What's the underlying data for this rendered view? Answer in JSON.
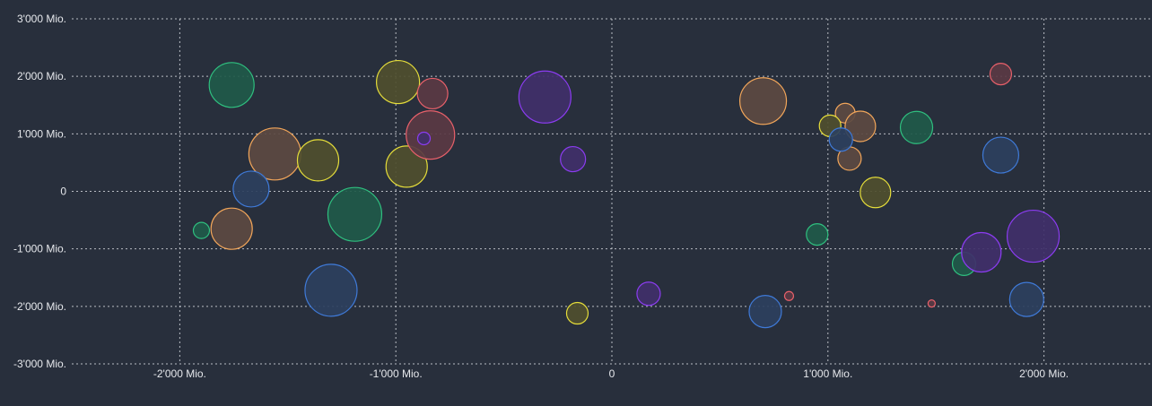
{
  "chart_data": {
    "type": "scatter",
    "subtype": "bubble",
    "title": "",
    "xlabel": "",
    "ylabel": "",
    "xlim": [
      -2500,
      2500
    ],
    "ylim": [
      -3000,
      3000
    ],
    "grid": true,
    "legend": "none",
    "x_ticks": [
      {
        "value": -2000,
        "label": "-2'000 Mio."
      },
      {
        "value": -1000,
        "label": "-1'000 Mio."
      },
      {
        "value": 0,
        "label": "0"
      },
      {
        "value": 1000,
        "label": "1'000 Mio."
      },
      {
        "value": 2000,
        "label": "2'000 Mio."
      }
    ],
    "y_ticks": [
      {
        "value": 3000,
        "label": "3'000 Mio."
      },
      {
        "value": 2000,
        "label": "2'000 Mio."
      },
      {
        "value": 1000,
        "label": "1'000 Mio."
      },
      {
        "value": 0,
        "label": "0"
      },
      {
        "value": -1000,
        "label": "-1'000 Mio."
      },
      {
        "value": -2000,
        "label": "-2'000 Mio."
      },
      {
        "value": -3000,
        "label": "-3'000 Mio."
      }
    ],
    "series": [
      {
        "color": "#2fbf7f",
        "fill": "#1f5a4a",
        "points": [
          {
            "x": -1760,
            "y": 1850,
            "size": 25
          },
          {
            "x": -1190,
            "y": -400,
            "size": 30
          },
          {
            "x": -1900,
            "y": -680,
            "size": 9
          },
          {
            "x": 950,
            "y": -750,
            "size": 12
          },
          {
            "x": 1410,
            "y": 1110,
            "size": 18
          },
          {
            "x": 1630,
            "y": -1260,
            "size": 13
          }
        ]
      },
      {
        "color": "#f2a65a",
        "fill": "#5c4a42",
        "points": [
          {
            "x": -1560,
            "y": 650,
            "size": 29
          },
          {
            "x": -1760,
            "y": -650,
            "size": 23
          },
          {
            "x": 700,
            "y": 1570,
            "size": 26
          },
          {
            "x": 1080,
            "y": 1360,
            "size": 11
          },
          {
            "x": 1150,
            "y": 1130,
            "size": 17
          },
          {
            "x": 1100,
            "y": 570,
            "size": 13
          }
        ]
      },
      {
        "color": "#e5dd3a",
        "fill": "#4f4f2f",
        "points": [
          {
            "x": -990,
            "y": 1900,
            "size": 24
          },
          {
            "x": -1360,
            "y": 540,
            "size": 23
          },
          {
            "x": -950,
            "y": 430,
            "size": 23
          },
          {
            "x": -160,
            "y": -2120,
            "size": 12
          },
          {
            "x": 1010,
            "y": 1140,
            "size": 12
          },
          {
            "x": 1220,
            "y": -20,
            "size": 17
          }
        ]
      },
      {
        "color": "#e8606a",
        "fill": "#5a3a44",
        "points": [
          {
            "x": -830,
            "y": 1700,
            "size": 17
          },
          {
            "x": -840,
            "y": 980,
            "size": 27
          },
          {
            "x": 820,
            "y": -1820,
            "size": 5
          },
          {
            "x": 1480,
            "y": -1950,
            "size": 4
          },
          {
            "x": 1800,
            "y": 2040,
            "size": 12
          }
        ]
      },
      {
        "color": "#8b3cf0",
        "fill": "#40306a",
        "points": [
          {
            "x": -310,
            "y": 1640,
            "size": 29
          },
          {
            "x": -180,
            "y": 560,
            "size": 14
          },
          {
            "x": -870,
            "y": 920,
            "size": 7
          },
          {
            "x": 170,
            "y": -1780,
            "size": 13
          },
          {
            "x": 1710,
            "y": -1060,
            "size": 22
          },
          {
            "x": 1950,
            "y": -780,
            "size": 29
          }
        ]
      },
      {
        "color": "#3f7ad8",
        "fill": "#2c405e",
        "points": [
          {
            "x": -1670,
            "y": 40,
            "size": 20
          },
          {
            "x": -1300,
            "y": -1720,
            "size": 29
          },
          {
            "x": 710,
            "y": -2090,
            "size": 18
          },
          {
            "x": 1060,
            "y": 900,
            "size": 13
          },
          {
            "x": 1800,
            "y": 630,
            "size": 20
          },
          {
            "x": 1920,
            "y": -1880,
            "size": 19
          }
        ]
      }
    ]
  }
}
